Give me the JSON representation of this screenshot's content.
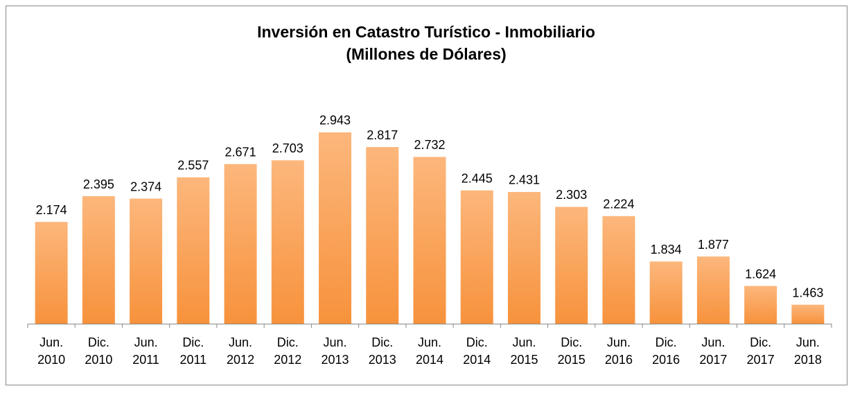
{
  "chart_data": {
    "type": "bar",
    "title": [
      "Inversión en Catastro Turístico - Inmobiliario",
      "(Millones de Dólares)"
    ],
    "categories": [
      [
        "Jun.",
        "2010"
      ],
      [
        "Dic.",
        "2010"
      ],
      [
        "Jun.",
        "2011"
      ],
      [
        "Dic.",
        "2011"
      ],
      [
        "Jun.",
        "2012"
      ],
      [
        "Dic.",
        "2012"
      ],
      [
        "Jun.",
        "2013"
      ],
      [
        "Dic.",
        "2013"
      ],
      [
        "Jun.",
        "2014"
      ],
      [
        "Dic.",
        "2014"
      ],
      [
        "Jun.",
        "2015"
      ],
      [
        "Dic.",
        "2015"
      ],
      [
        "Jun.",
        "2016"
      ],
      [
        "Dic.",
        "2016"
      ],
      [
        "Jun.",
        "2017"
      ],
      [
        "Dic.",
        "2017"
      ],
      [
        "Jun.",
        "2018"
      ]
    ],
    "values": [
      2174,
      2395,
      2374,
      2557,
      2671,
      2703,
      2943,
      2817,
      2732,
      2445,
      2431,
      2303,
      2224,
      1834,
      1877,
      1624,
      1463
    ],
    "value_labels": [
      "2.174",
      "2.395",
      "2.374",
      "2.557",
      "2.671",
      "2.703",
      "2.943",
      "2.817",
      "2.732",
      "2.445",
      "2.431",
      "2.303",
      "2.224",
      "1.834",
      "1.877",
      "1.624",
      "1.463"
    ],
    "color": [
      "#fcb77c",
      "#f7923c"
    ],
    "ylim": [
      1300,
      3300
    ]
  }
}
